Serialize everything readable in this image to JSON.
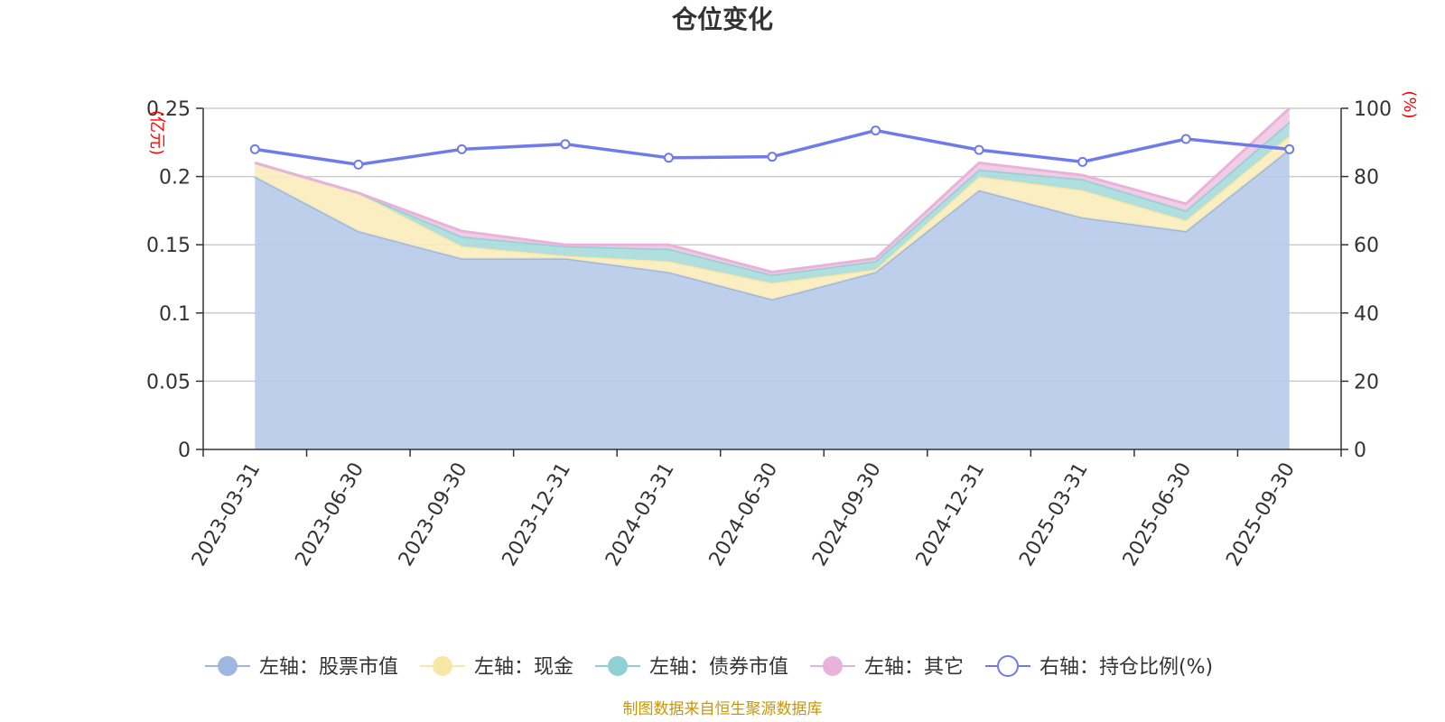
{
  "chart_data": {
    "type": "area",
    "title": "仓位变化",
    "categories": [
      "2023-03-31",
      "2023-06-30",
      "2023-09-30",
      "2023-12-31",
      "2024-03-31",
      "2024-06-30",
      "2024-09-30",
      "2024-12-31",
      "2025-03-31",
      "2025-06-30",
      "2025-09-30"
    ],
    "left_axis": {
      "unit": "(亿元)",
      "ylim": [
        0,
        0.25
      ],
      "ticks": [
        "0",
        "0.05",
        "0.1",
        "0.15",
        "0.2",
        "0.25"
      ]
    },
    "right_axis": {
      "unit": "(%)",
      "ylim": [
        0,
        100
      ],
      "ticks": [
        "0",
        "20",
        "40",
        "60",
        "80",
        "100"
      ]
    },
    "stacked_series": [
      {
        "name": "左轴：股票市值",
        "color": "#9db7e0",
        "fill": "#b8cbe9",
        "values": [
          0.2,
          0.16,
          0.14,
          0.14,
          0.13,
          0.11,
          0.13,
          0.19,
          0.17,
          0.16,
          0.22
        ]
      },
      {
        "name": "左轴：现金",
        "color": "#f7e7a4",
        "fill": "#faedbd",
        "values": [
          0.01,
          0.028,
          0.009,
          0.002,
          0.008,
          0.012,
          0.002,
          0.01,
          0.02,
          0.008,
          0.01
        ]
      },
      {
        "name": "左轴：债券市值",
        "color": "#8fd1d2",
        "fill": "#aadcdd",
        "values": [
          0.0,
          0.0,
          0.007,
          0.007,
          0.009,
          0.006,
          0.006,
          0.005,
          0.008,
          0.007,
          0.01
        ]
      },
      {
        "name": "左轴：其它",
        "color": "#e9b3d9",
        "fill": "#f0c9e5",
        "values": [
          0.0,
          0.0,
          0.004,
          0.001,
          0.003,
          0.002,
          0.002,
          0.005,
          0.003,
          0.005,
          0.01
        ]
      }
    ],
    "line_series": {
      "name": "右轴：持仓比例(%)",
      "color": "#6f7bea",
      "axis": "right",
      "values": [
        88,
        83.5,
        88,
        89.5,
        85.5,
        85.8,
        93.5,
        87.8,
        84.3,
        91,
        88
      ]
    },
    "grid": true,
    "legend_position": "bottom",
    "source": "制图数据来自恒生聚源数据库"
  }
}
